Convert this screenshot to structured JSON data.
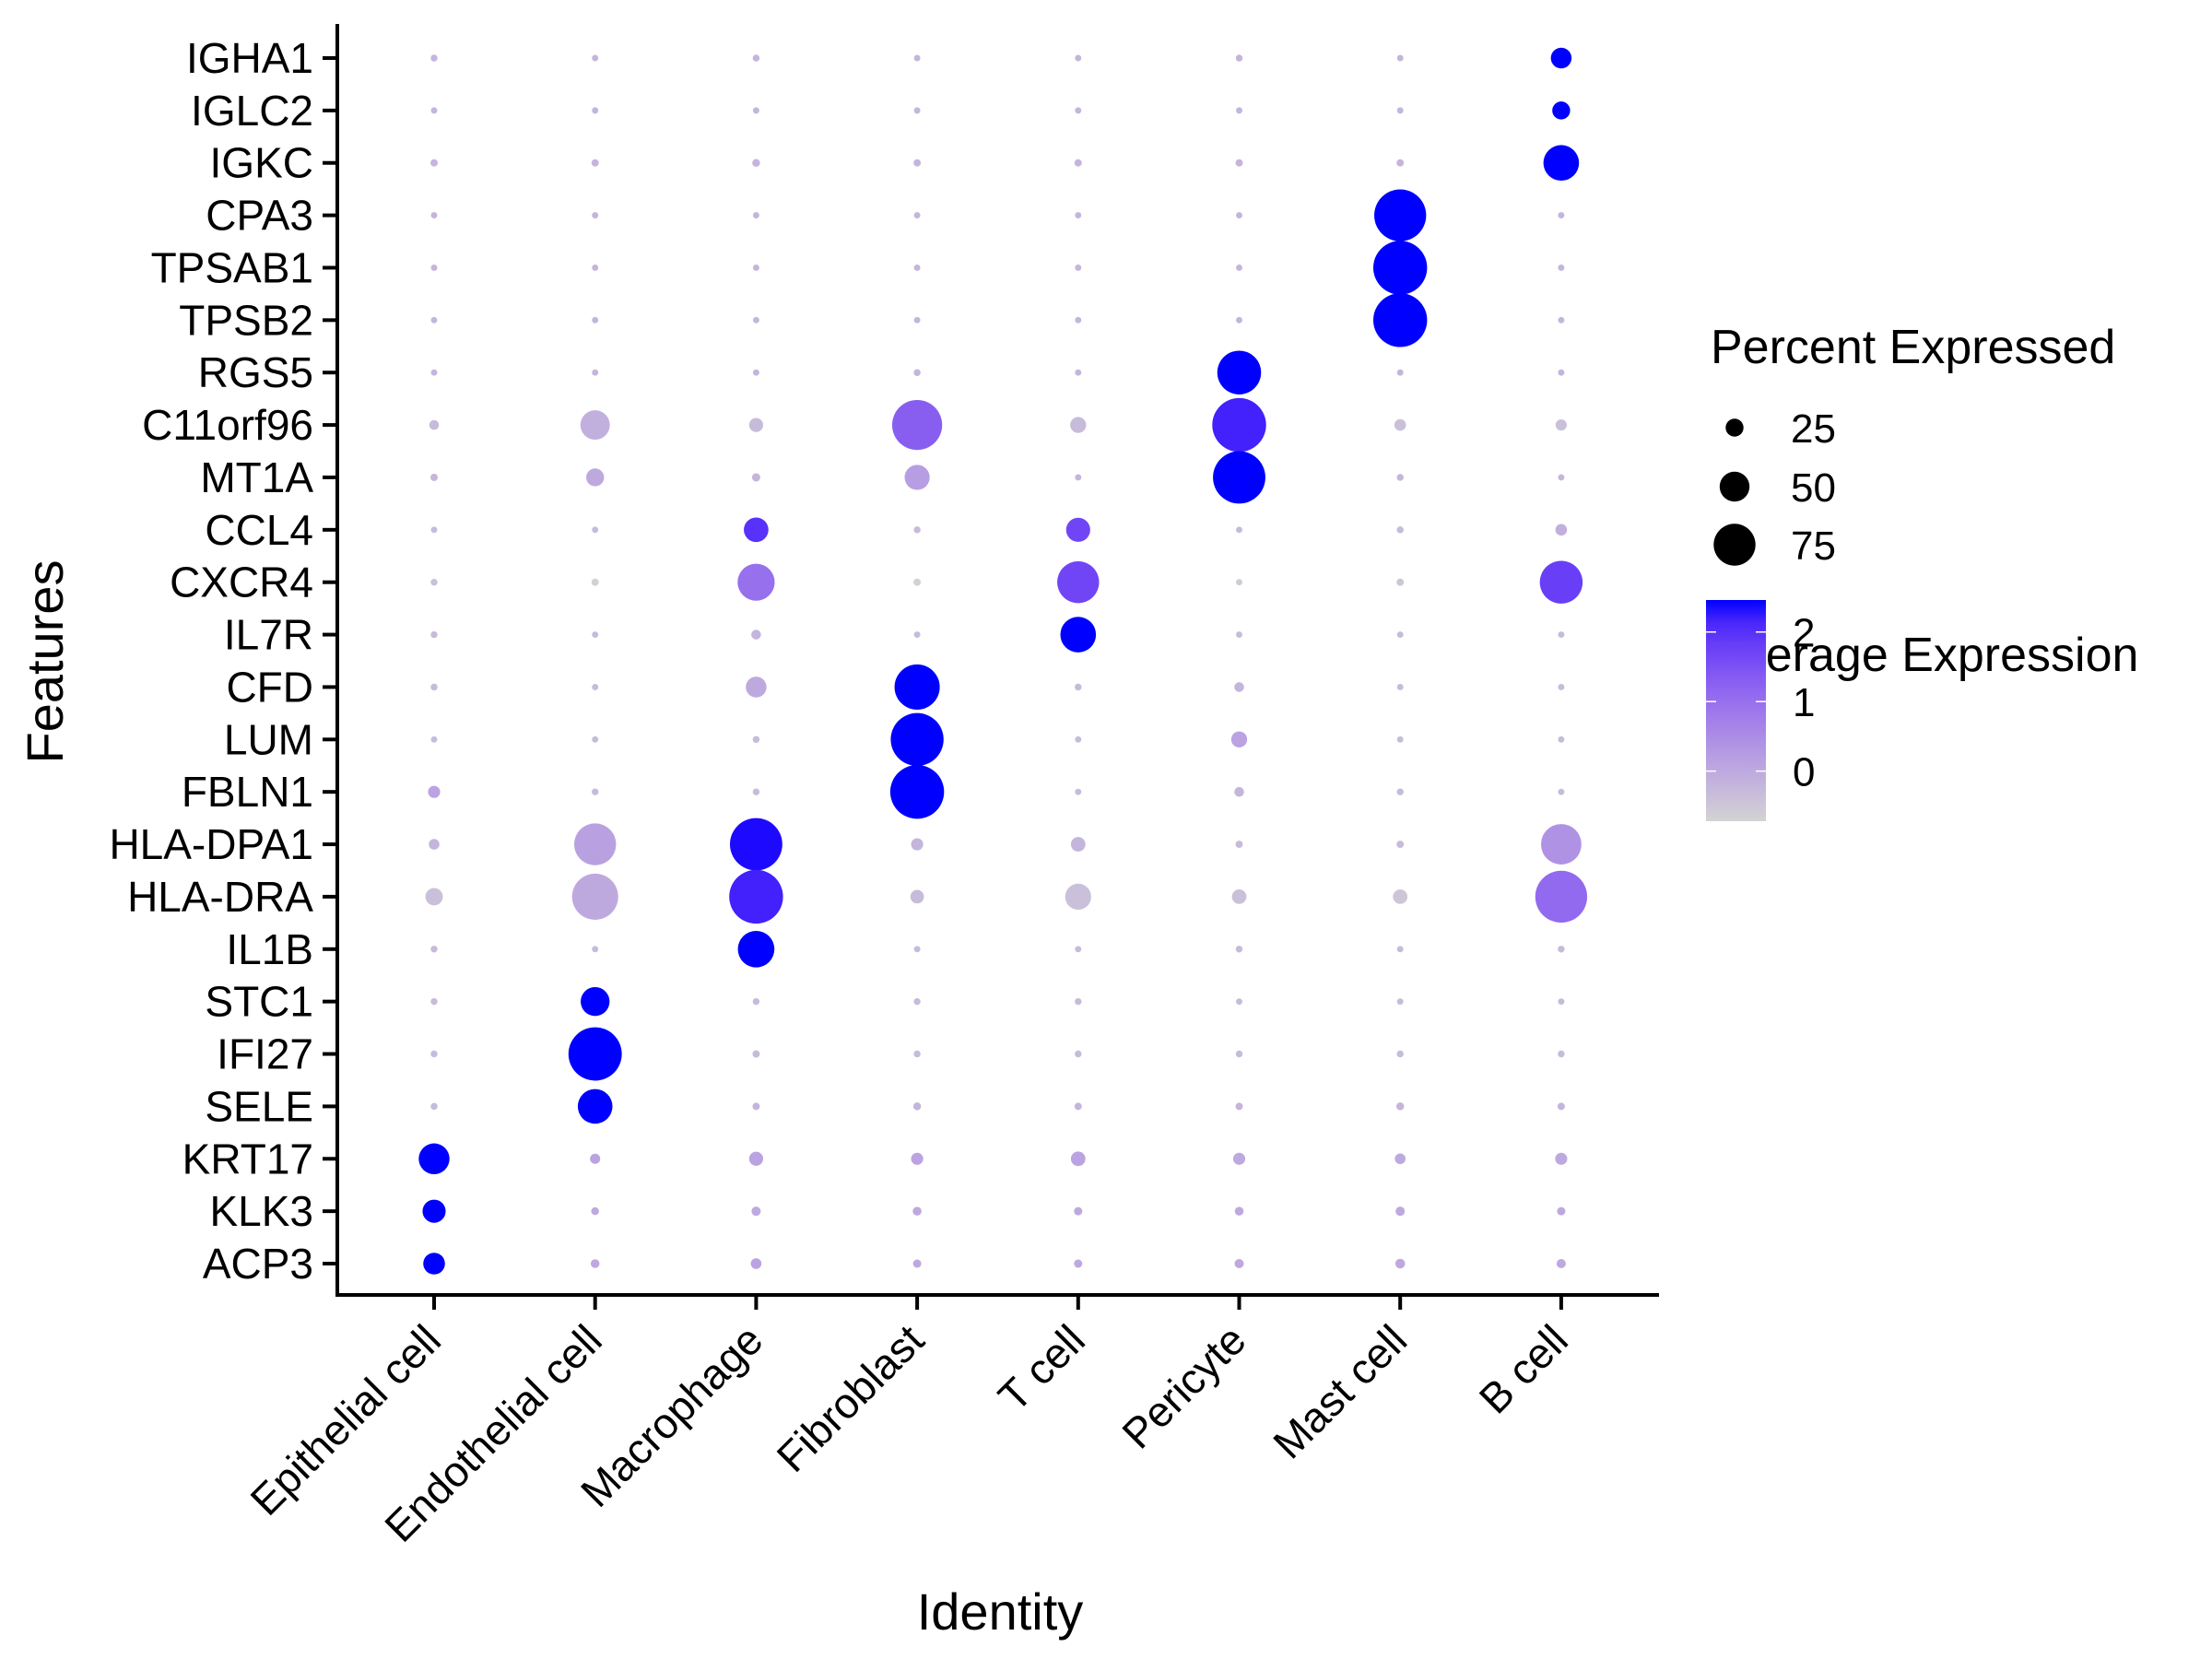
{
  "chart_data": {
    "type": "scatter",
    "subtype": "dotplot",
    "title": "",
    "xlabel": "Identity",
    "ylabel": "Features",
    "grid": false,
    "categories": [
      "Epithelial cell",
      "Endothelial cell",
      "Macrophage",
      "Fibroblast",
      "T cell",
      "Pericyte",
      "Mast cell",
      "B cell"
    ],
    "features": [
      "IGHA1",
      "IGLC2",
      "IGKC",
      "CPA3",
      "TPSAB1",
      "TPSB2",
      "RGS5",
      "C11orf96",
      "MT1A",
      "CCL4",
      "CXCR4",
      "IL7R",
      "CFD",
      "LUM",
      "FBLN1",
      "HLA-DPA1",
      "HLA-DRA",
      "IL1B",
      "STC1",
      "IFI27",
      "SELE",
      "KRT17",
      "KLK3",
      "ACP3"
    ],
    "percent_expressed": [
      [
        2,
        1,
        2,
        1,
        1,
        2,
        1,
        31
      ],
      [
        1,
        1,
        1,
        1,
        1,
        1,
        1,
        25
      ],
      [
        3,
        3,
        4,
        3,
        3,
        3,
        3,
        62
      ],
      [
        1,
        1,
        1,
        1,
        1,
        1,
        96,
        1
      ],
      [
        1,
        1,
        1,
        1,
        1,
        1,
        100,
        1
      ],
      [
        1,
        1,
        1,
        1,
        1,
        1,
        100,
        1
      ],
      [
        1,
        1,
        1,
        2,
        1,
        79,
        1,
        1
      ],
      [
        8,
        49,
        17,
        92,
        21,
        100,
        12,
        11
      ],
      [
        3,
        25,
        5,
        40,
        1,
        97,
        2,
        1
      ],
      [
        1,
        1,
        39,
        2,
        38,
        1,
        2,
        12
      ],
      [
        2,
        3,
        65,
        3,
        75,
        1,
        3,
        77
      ],
      [
        2,
        1,
        8,
        1,
        62,
        1,
        1,
        1
      ],
      [
        2,
        1,
        31,
        82,
        2,
        8,
        1,
        1
      ],
      [
        1,
        1,
        2,
        98,
        1,
        21,
        1,
        1
      ],
      [
        13,
        2,
        2,
        100,
        1,
        8,
        2,
        1
      ],
      [
        10,
        75,
        97,
        13,
        18,
        3,
        3,
        72
      ],
      [
        24,
        84,
        100,
        16,
        42,
        18,
        18,
        96
      ],
      [
        2,
        1,
        64,
        1,
        1,
        2,
        1,
        2
      ],
      [
        2,
        48,
        2,
        2,
        2,
        1,
        1,
        1
      ],
      [
        2,
        99,
        3,
        2,
        2,
        2,
        2,
        2
      ],
      [
        2,
        60,
        3,
        4,
        3,
        3,
        4,
        3
      ],
      [
        52,
        9,
        17,
        13,
        18,
        13,
        10,
        13
      ],
      [
        36,
        4,
        7,
        6,
        5,
        6,
        7,
        5
      ],
      [
        33,
        6,
        10,
        5,
        5,
        7,
        8,
        7
      ]
    ],
    "average_expression": [
      [
        -0.2,
        -0.2,
        -0.2,
        -0.2,
        -0.2,
        -0.2,
        -0.2,
        2.5
      ],
      [
        -0.2,
        -0.2,
        -0.2,
        -0.2,
        -0.2,
        -0.2,
        -0.2,
        2.5
      ],
      [
        -0.2,
        -0.2,
        -0.2,
        -0.2,
        -0.2,
        -0.2,
        -0.2,
        2.5
      ],
      [
        -0.2,
        -0.2,
        -0.2,
        -0.2,
        -0.2,
        -0.2,
        2.5,
        -0.2
      ],
      [
        -0.2,
        -0.2,
        -0.2,
        -0.2,
        -0.2,
        -0.2,
        2.5,
        -0.2
      ],
      [
        -0.2,
        -0.2,
        -0.2,
        -0.2,
        -0.2,
        -0.2,
        2.5,
        -0.2
      ],
      [
        -0.2,
        -0.2,
        -0.2,
        -0.2,
        -0.2,
        2.5,
        -0.2,
        -0.2
      ],
      [
        -0.3,
        -0.1,
        -0.3,
        1.3,
        -0.3,
        2.2,
        -0.4,
        -0.4
      ],
      [
        -0.2,
        0.0,
        -0.2,
        0.2,
        -0.2,
        2.5,
        -0.2,
        -0.2
      ],
      [
        -0.3,
        -0.3,
        2.0,
        -0.3,
        1.7,
        -0.3,
        -0.3,
        -0.1
      ],
      [
        -0.4,
        -0.7,
        1.0,
        -0.7,
        1.7,
        -0.6,
        -0.5,
        1.8
      ],
      [
        -0.3,
        -0.3,
        -0.2,
        -0.3,
        2.5,
        -0.3,
        -0.3,
        -0.3
      ],
      [
        -0.3,
        -0.3,
        0.0,
        2.5,
        -0.3,
        -0.2,
        -0.3,
        -0.3
      ],
      [
        -0.3,
        -0.3,
        -0.3,
        2.5,
        -0.3,
        0.1,
        -0.3,
        -0.3
      ],
      [
        0.1,
        -0.3,
        -0.3,
        2.5,
        -0.3,
        -0.2,
        -0.3,
        -0.3
      ],
      [
        -0.2,
        0.15,
        2.4,
        -0.2,
        -0.2,
        -0.3,
        -0.3,
        0.4
      ],
      [
        -0.4,
        0.0,
        2.2,
        -0.3,
        -0.4,
        -0.4,
        -0.5,
        1.1
      ],
      [
        -0.3,
        -0.3,
        2.5,
        -0.3,
        -0.3,
        -0.3,
        -0.3,
        -0.3
      ],
      [
        -0.3,
        2.5,
        -0.3,
        -0.3,
        -0.3,
        -0.3,
        -0.3,
        -0.3
      ],
      [
        -0.3,
        2.5,
        -0.3,
        -0.3,
        -0.3,
        -0.3,
        -0.3,
        -0.3
      ],
      [
        -0.3,
        2.5,
        -0.2,
        -0.2,
        -0.2,
        -0.2,
        -0.2,
        -0.2
      ],
      [
        2.5,
        0.1,
        0.1,
        0.1,
        0.1,
        0.0,
        0.0,
        0.0
      ],
      [
        2.5,
        0.0,
        0.0,
        0.0,
        0.0,
        0.0,
        0.0,
        0.0
      ],
      [
        2.5,
        0.0,
        0.1,
        0.0,
        0.0,
        0.0,
        0.0,
        0.0
      ]
    ],
    "size_legend": {
      "title": "Percent Expressed",
      "breaks": [
        25,
        50,
        75
      ]
    },
    "color_legend": {
      "title": "Average Expression",
      "breaks": [
        0,
        1,
        2
      ],
      "range": [
        -0.72,
        2.46
      ],
      "low_color": "#D3D3D3",
      "high_color": "#0000FF"
    },
    "legend_position": "right"
  }
}
